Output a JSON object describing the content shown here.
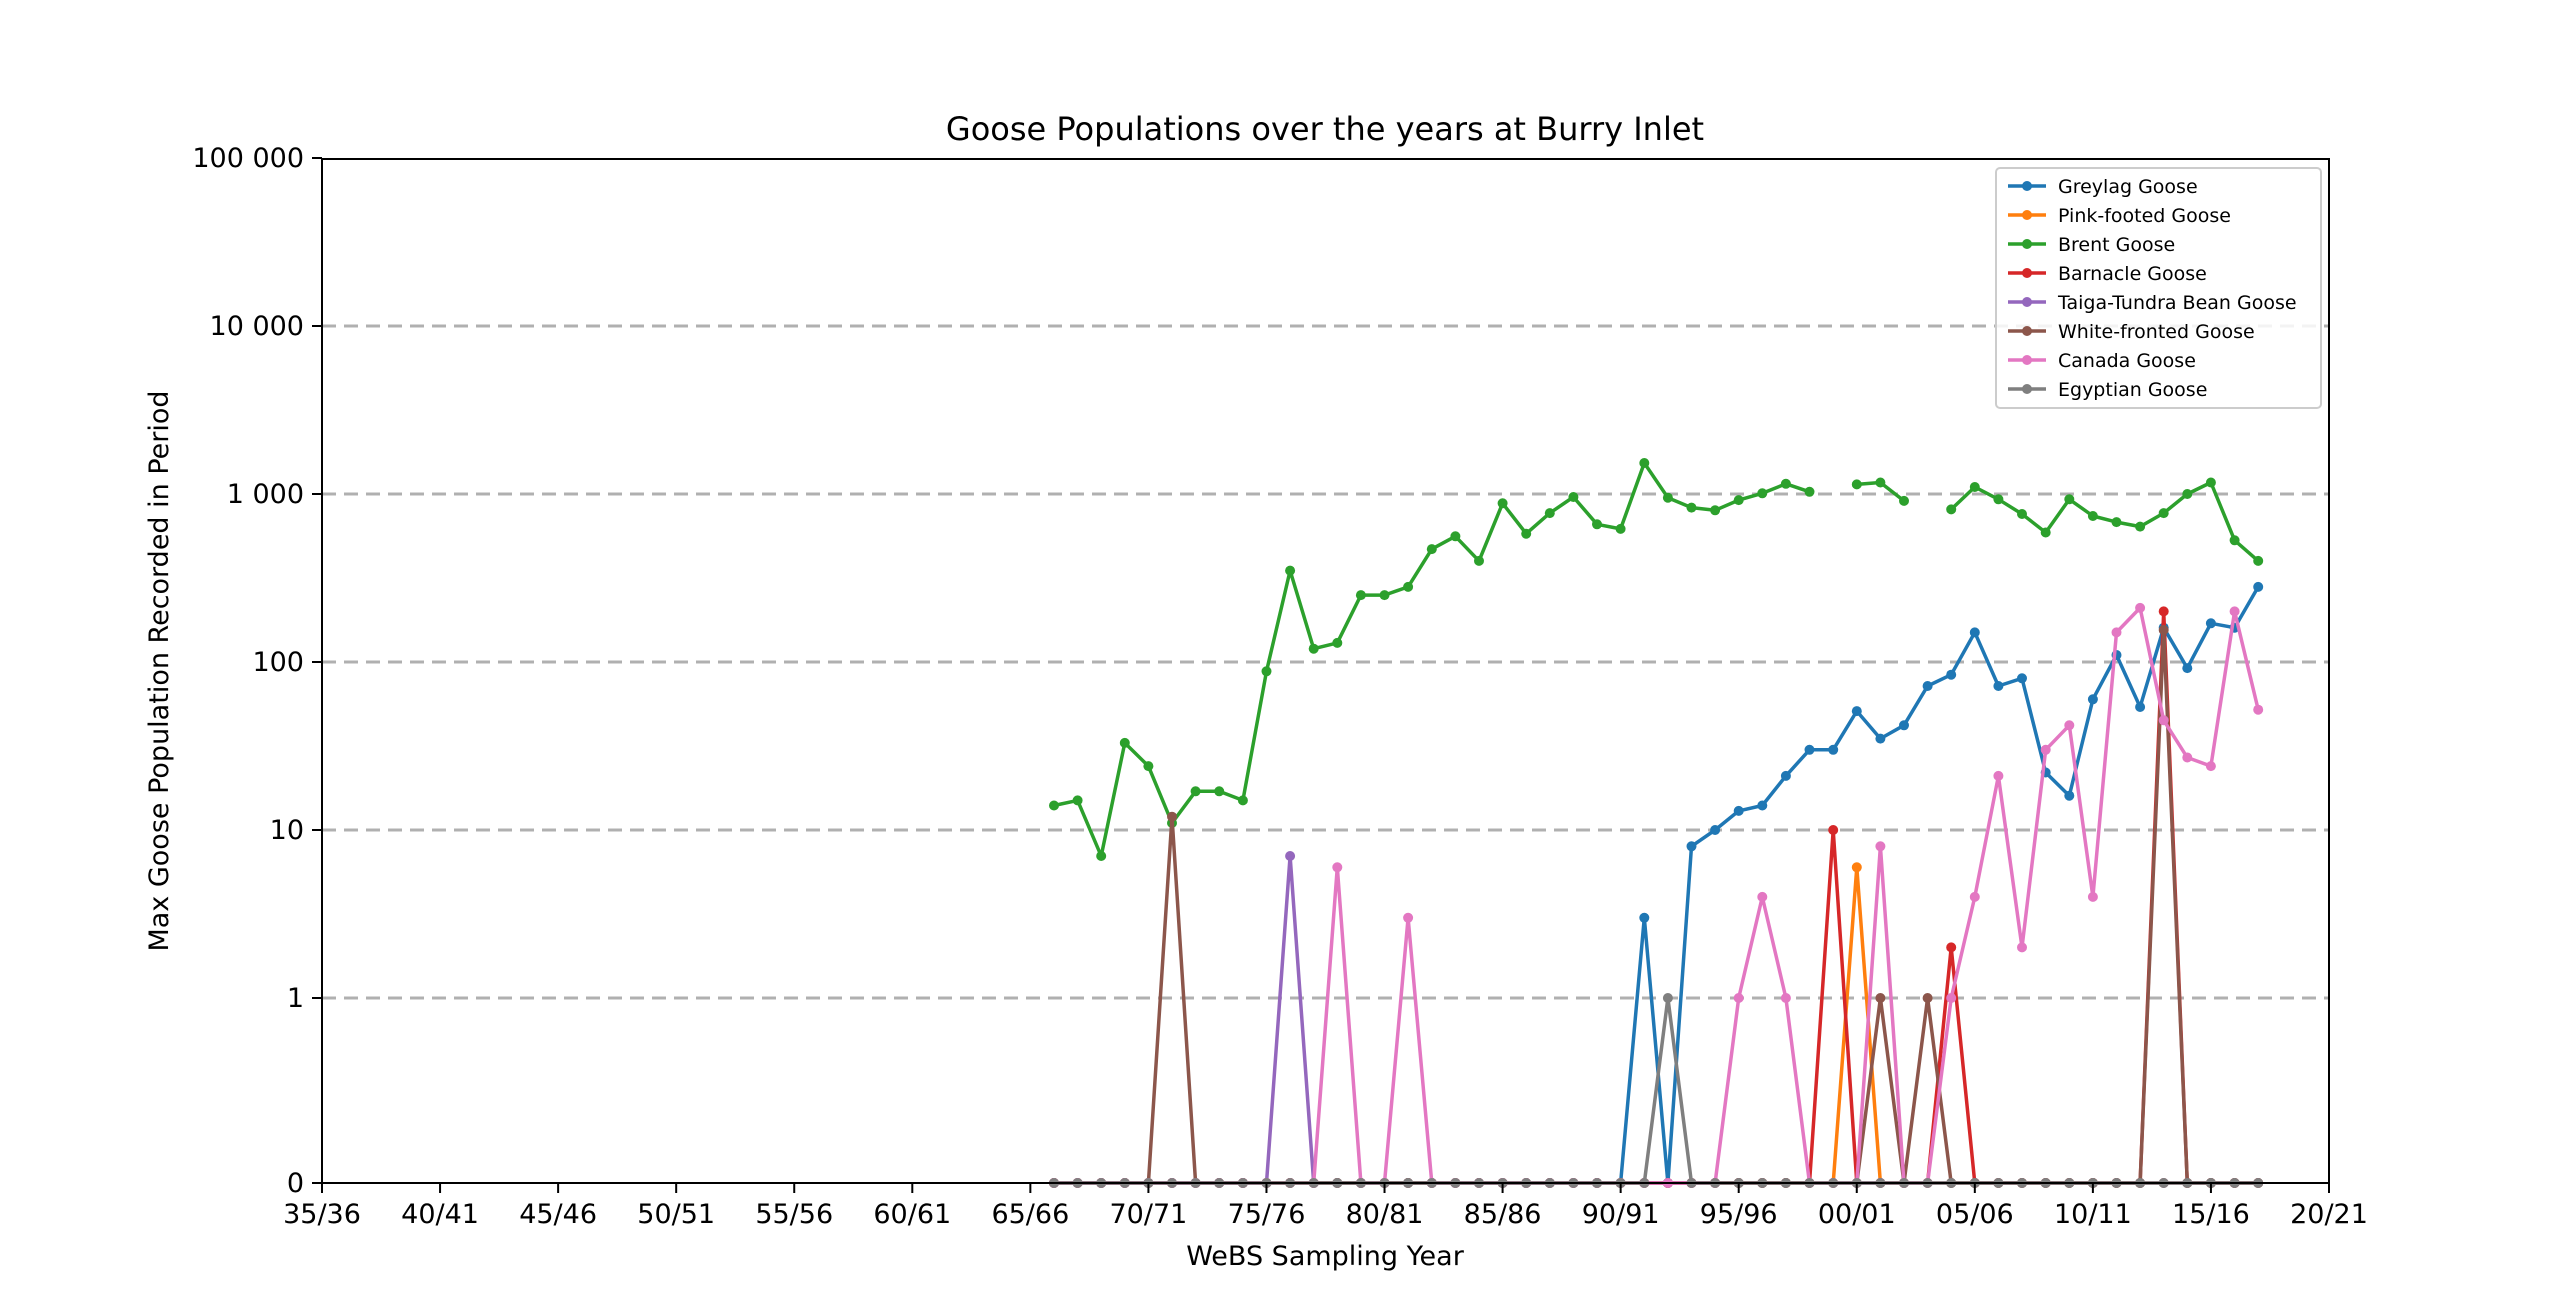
{
  "chart_data": {
    "type": "line",
    "title": "Goose Populations over the years at Burry Inlet",
    "xlabel": "WeBS Sampling Year",
    "ylabel": "Max Goose Population Recorded in Period",
    "x_start_year": 1935,
    "x_end_year": 2020,
    "x_ticks": [
      {
        "year": 1935,
        "label": "35/36"
      },
      {
        "year": 1940,
        "label": "40/41"
      },
      {
        "year": 1945,
        "label": "45/46"
      },
      {
        "year": 1950,
        "label": "50/51"
      },
      {
        "year": 1955,
        "label": "55/56"
      },
      {
        "year": 1960,
        "label": "60/61"
      },
      {
        "year": 1965,
        "label": "65/66"
      },
      {
        "year": 1970,
        "label": "70/71"
      },
      {
        "year": 1975,
        "label": "75/76"
      },
      {
        "year": 1980,
        "label": "80/81"
      },
      {
        "year": 1985,
        "label": "85/86"
      },
      {
        "year": 1990,
        "label": "90/91"
      },
      {
        "year": 1995,
        "label": "95/96"
      },
      {
        "year": 2000,
        "label": "00/01"
      },
      {
        "year": 2005,
        "label": "05/06"
      },
      {
        "year": 2010,
        "label": "10/11"
      },
      {
        "year": 2015,
        "label": "15/16"
      },
      {
        "year": 2020,
        "label": "20/21"
      }
    ],
    "y_scale": "symlog",
    "y_ticks": [
      {
        "value": 0,
        "label": "0"
      },
      {
        "value": 1,
        "label": "1"
      },
      {
        "value": 10,
        "label": "10"
      },
      {
        "value": 100,
        "label": "100"
      },
      {
        "value": 1000,
        "label": "1 000"
      },
      {
        "value": 10000,
        "label": "10 000"
      },
      {
        "value": 100000,
        "label": "100 000"
      }
    ],
    "ylim": [
      0,
      100000
    ],
    "grid": "horizontal dashed",
    "legend_position": "top-right",
    "x_years": [
      1966,
      1967,
      1968,
      1969,
      1970,
      1971,
      1972,
      1973,
      1974,
      1975,
      1976,
      1977,
      1978,
      1979,
      1980,
      1981,
      1982,
      1983,
      1984,
      1985,
      1986,
      1987,
      1988,
      1989,
      1990,
      1991,
      1992,
      1993,
      1994,
      1995,
      1996,
      1997,
      1998,
      1999,
      2000,
      2001,
      2002,
      2003,
      2004,
      2005,
      2006,
      2007,
      2008,
      2009,
      2010,
      2011,
      2012,
      2013,
      2014,
      2015,
      2016,
      2017
    ],
    "series": [
      {
        "name": "Greylag Goose",
        "color": "#1f77b4",
        "values": [
          0,
          0,
          0,
          0,
          0,
          0,
          0,
          0,
          0,
          0,
          0,
          0,
          0,
          0,
          0,
          0,
          0,
          0,
          0,
          0,
          0,
          0,
          0,
          0,
          0,
          3,
          0,
          8,
          10,
          13,
          14,
          21,
          30,
          30,
          51,
          35,
          42,
          72,
          84,
          150,
          72,
          80,
          22,
          16,
          60,
          110,
          54,
          160,
          92,
          170,
          160,
          280
        ]
      },
      {
        "name": "Pink-footed Goose",
        "color": "#ff7f0e",
        "values": [
          0,
          0,
          0,
          0,
          0,
          0,
          0,
          0,
          0,
          0,
          0,
          0,
          0,
          0,
          0,
          0,
          0,
          0,
          0,
          0,
          0,
          0,
          0,
          0,
          0,
          0,
          0,
          0,
          0,
          0,
          0,
          0,
          0,
          0,
          6,
          0,
          0,
          0,
          0,
          0,
          0,
          0,
          0,
          0,
          0,
          0,
          0,
          0,
          0,
          0,
          0,
          0
        ]
      },
      {
        "name": "Brent Goose",
        "color": "#2ca02c",
        "values": [
          14,
          15,
          7,
          33,
          24,
          11,
          17,
          17,
          15,
          88,
          350,
          120,
          130,
          250,
          250,
          280,
          470,
          560,
          400,
          880,
          580,
          770,
          960,
          660,
          620,
          1530,
          950,
          830,
          800,
          920,
          1010,
          1150,
          1030,
          null,
          1140,
          1170,
          910,
          null,
          810,
          1100,
          930,
          760,
          590,
          930,
          740,
          680,
          640,
          770,
          1000,
          1170,
          530,
          400
        ]
      },
      {
        "name": "Barnacle Goose",
        "color": "#d62728",
        "values": [
          0,
          0,
          0,
          0,
          0,
          0,
          0,
          0,
          0,
          0,
          0,
          0,
          0,
          0,
          0,
          0,
          0,
          0,
          0,
          0,
          0,
          0,
          0,
          0,
          0,
          0,
          0,
          0,
          0,
          0,
          0,
          0,
          0,
          10,
          0,
          0,
          0,
          0,
          2,
          0,
          0,
          0,
          0,
          0,
          0,
          0,
          0,
          200,
          0,
          0,
          0,
          0
        ]
      },
      {
        "name": "Taiga-Tundra Bean Goose",
        "color": "#9467bd",
        "values": [
          0,
          0,
          0,
          0,
          0,
          0,
          0,
          0,
          0,
          0,
          7,
          0,
          0,
          0,
          0,
          0,
          0,
          0,
          0,
          0,
          0,
          0,
          0,
          0,
          0,
          0,
          0,
          0,
          0,
          0,
          0,
          0,
          0,
          0,
          0,
          0,
          0,
          0,
          0,
          0,
          0,
          0,
          0,
          0,
          0,
          0,
          0,
          0,
          0,
          0,
          0,
          0
        ]
      },
      {
        "name": "White-fronted Goose",
        "color": "#8c564b",
        "values": [
          0,
          0,
          0,
          0,
          0,
          12,
          0,
          0,
          0,
          0,
          0,
          0,
          0,
          0,
          0,
          0,
          0,
          0,
          0,
          0,
          0,
          0,
          0,
          0,
          0,
          0,
          0,
          0,
          0,
          0,
          0,
          0,
          0,
          0,
          0,
          1,
          0,
          1,
          0,
          0,
          0,
          0,
          0,
          0,
          0,
          0,
          0,
          155,
          0,
          0,
          0,
          0
        ]
      },
      {
        "name": "Canada Goose",
        "color": "#e377c2",
        "values": [
          0,
          0,
          0,
          0,
          0,
          0,
          0,
          0,
          0,
          0,
          0,
          0,
          6,
          0,
          0,
          3,
          0,
          0,
          0,
          0,
          0,
          0,
          0,
          0,
          0,
          0,
          0,
          0,
          0,
          1,
          4,
          1,
          0,
          0,
          0,
          8,
          0,
          0,
          1,
          4,
          21,
          2,
          30,
          42,
          4,
          150,
          210,
          45,
          27,
          24,
          200,
          52
        ]
      },
      {
        "name": "Egyptian Goose",
        "color": "#7f7f7f",
        "values": [
          0,
          0,
          0,
          0,
          0,
          0,
          0,
          0,
          0,
          0,
          0,
          0,
          0,
          0,
          0,
          0,
          0,
          0,
          0,
          0,
          0,
          0,
          0,
          0,
          0,
          0,
          1,
          0,
          0,
          0,
          0,
          0,
          0,
          0,
          0,
          0,
          0,
          0,
          0,
          0,
          0,
          0,
          0,
          0,
          0,
          0,
          0,
          0,
          0,
          0,
          0,
          0
        ]
      }
    ]
  }
}
